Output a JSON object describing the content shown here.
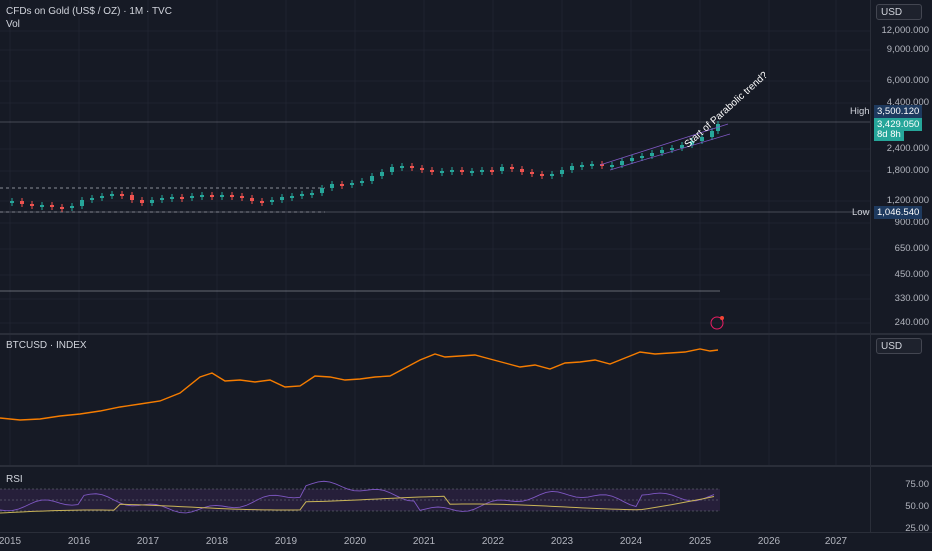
{
  "main": {
    "title": "CFDs on Gold (US$ / OZ) · 1M · TVC",
    "vol_label": "Vol",
    "currency": "USD",
    "annotation": "Start of Parabolic trend?",
    "price_ticks": [
      "12,000.000",
      "9,000.000",
      "6,000.000",
      "4,400.000",
      "2,400.000",
      "1,800.000",
      "1,200.000",
      "900.000",
      "650.000",
      "450.000",
      "330.000",
      "240.000"
    ],
    "high_label": "High",
    "high_value": "3,500.120",
    "last_value": "3,429.050",
    "countdown": "8d 8h",
    "low_label": "Low",
    "low_value": "1,046.540",
    "colors": {
      "up": "#26a69a",
      "down": "#ef5350",
      "last": "#26a69a",
      "low_bg": "#1e3a5f",
      "high_bg": "#1e3a5f"
    }
  },
  "btc": {
    "title": "BTCUSD · INDEX",
    "currency": "USD",
    "line_color": "#f57c00"
  },
  "rsi": {
    "title": "RSI",
    "ticks": [
      "75.00",
      "50.00",
      "25.00"
    ],
    "line_color": "#7e57c2",
    "ma_color": "#c9b458"
  },
  "time_axis": [
    "2015",
    "2016",
    "2017",
    "2018",
    "2019",
    "2020",
    "2021",
    "2022",
    "2023",
    "2024",
    "2025",
    "2026",
    "2027"
  ]
}
